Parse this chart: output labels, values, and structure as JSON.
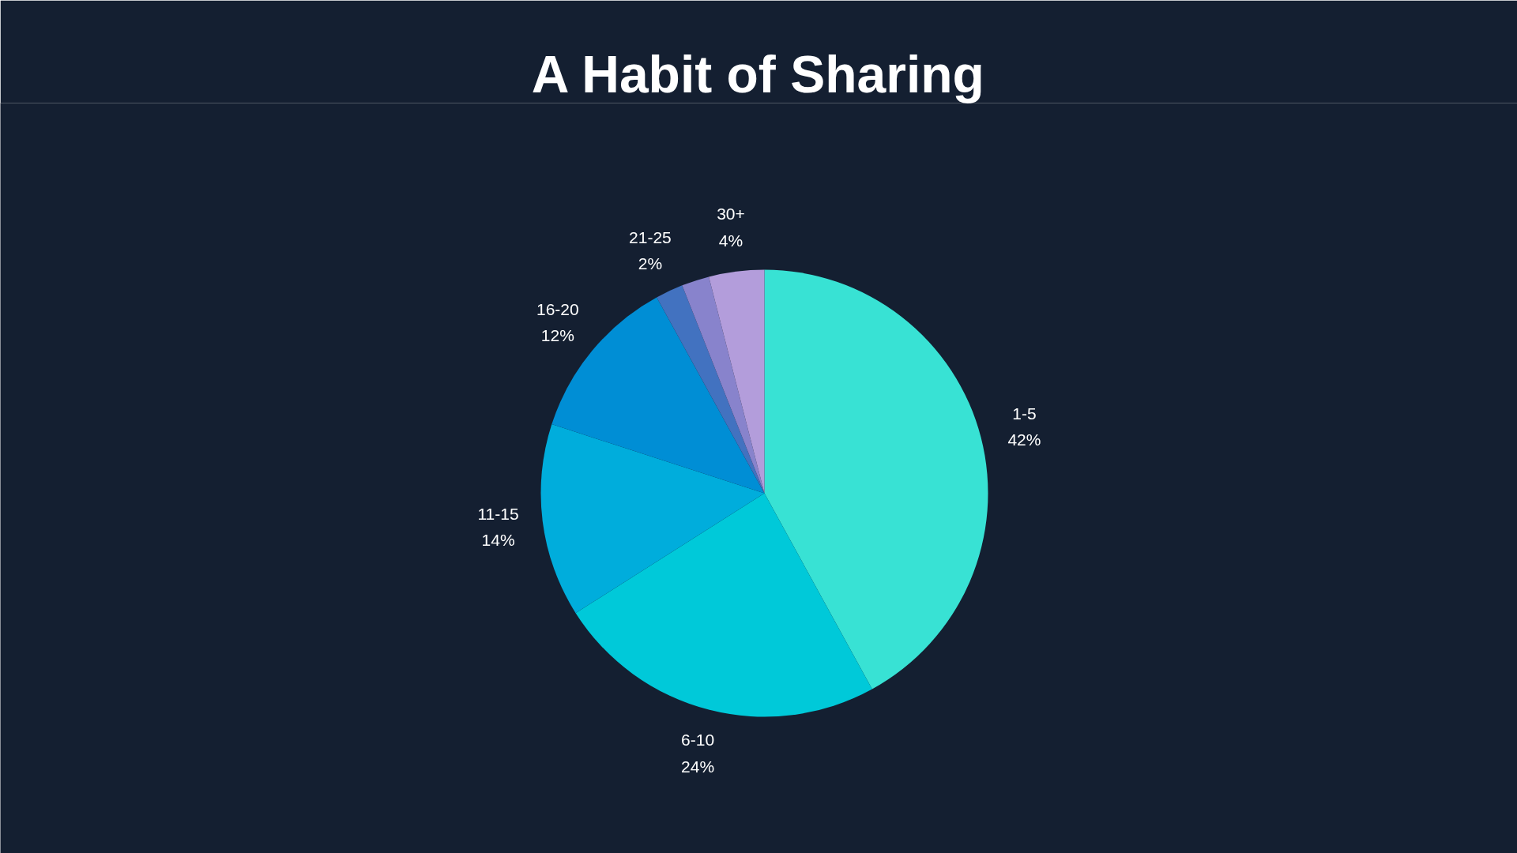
{
  "chart_data": {
    "type": "pie",
    "title": "A Habit of Sharing",
    "categories": [
      "1-5",
      "6-10",
      "11-15",
      "16-20",
      "21-25",
      null,
      "30+"
    ],
    "values": [
      42,
      24,
      14,
      12,
      2,
      2,
      4
    ],
    "colors": [
      "#38e2d4",
      "#00c9d9",
      "#00addc",
      "#008ed5",
      "#4272c0",
      "#8883cc",
      "#b39ddb"
    ],
    "value_labels": [
      "42%",
      "24%",
      "14%",
      "12%",
      "2%",
      null,
      "4%"
    ]
  }
}
